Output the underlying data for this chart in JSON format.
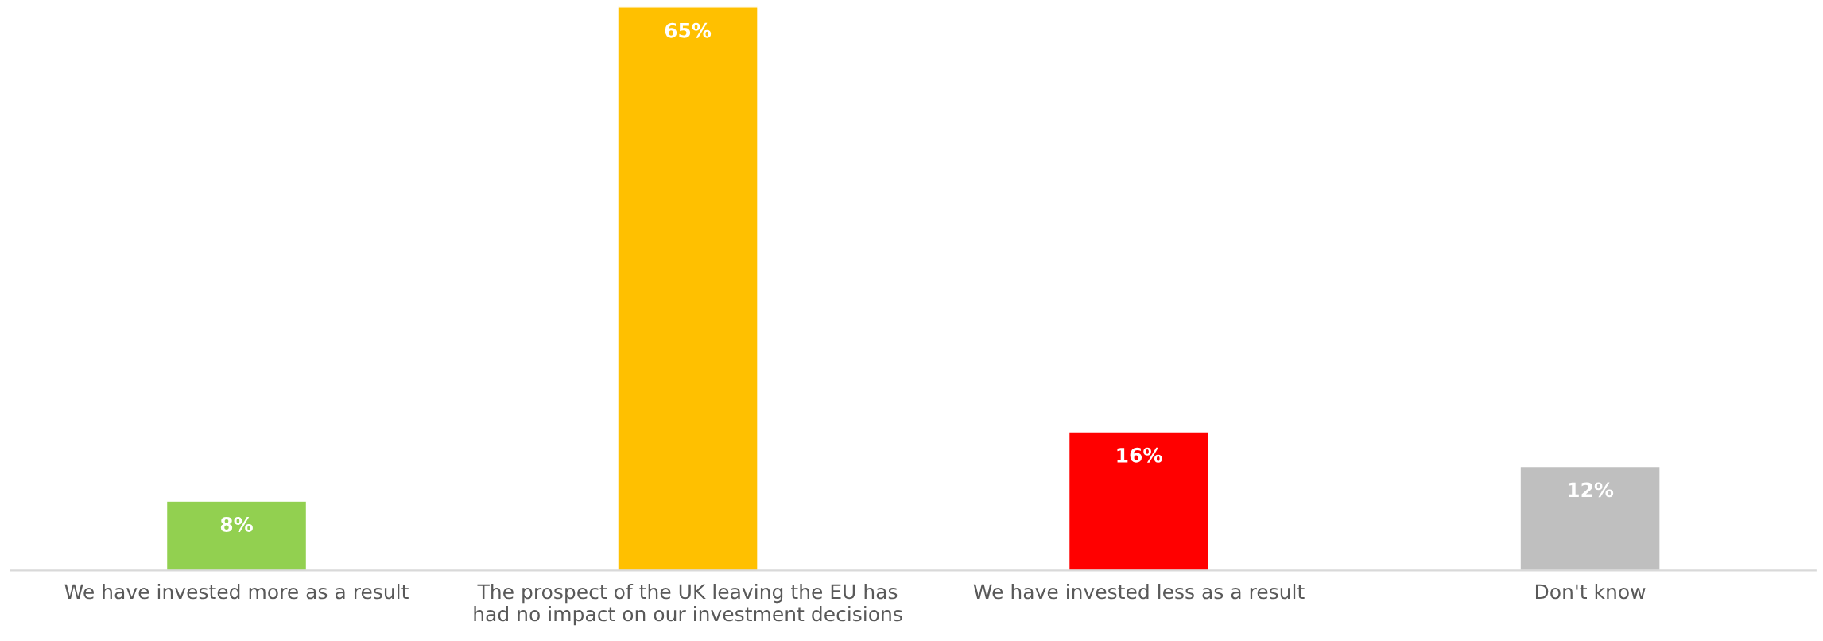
{
  "chart_data": {
    "type": "bar",
    "categories": [
      "We have invested more as a result",
      "The prospect of the UK leaving the EU has\nhad no impact on our investment decisions",
      "We have invested less as a result",
      "Don't know"
    ],
    "values": [
      8,
      65,
      16,
      12
    ],
    "colors": [
      "#92d050",
      "#ffc000",
      "#ff0000",
      "#bfbfbf"
    ],
    "value_labels": [
      "8%",
      "65%",
      "16%",
      "12%"
    ],
    "tick_labels": "x",
    "grid": false,
    "legend": false
  }
}
